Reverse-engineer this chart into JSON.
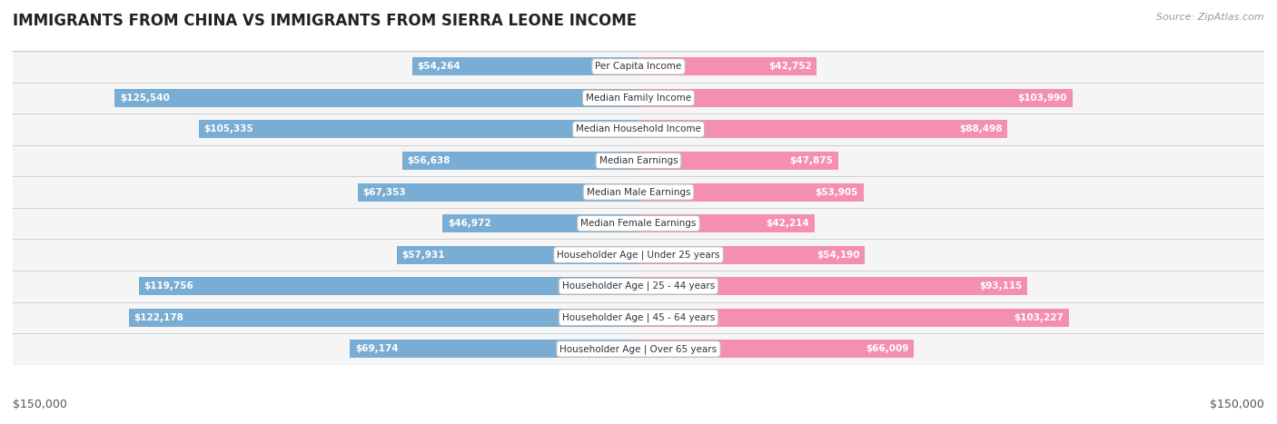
{
  "title": "IMMIGRANTS FROM CHINA VS IMMIGRANTS FROM SIERRA LEONE INCOME",
  "source": "Source: ZipAtlas.com",
  "categories": [
    "Per Capita Income",
    "Median Family Income",
    "Median Household Income",
    "Median Earnings",
    "Median Male Earnings",
    "Median Female Earnings",
    "Householder Age | Under 25 years",
    "Householder Age | 25 - 44 years",
    "Householder Age | 45 - 64 years",
    "Householder Age | Over 65 years"
  ],
  "china_values": [
    54264,
    125540,
    105335,
    56638,
    67353,
    46972,
    57931,
    119756,
    122178,
    69174
  ],
  "sierra_values": [
    42752,
    103990,
    88498,
    47875,
    53905,
    42214,
    54190,
    93115,
    103227,
    66009
  ],
  "china_color": "#7aadd4",
  "sierra_color": "#f48fb1",
  "china_color_dark": "#5b8fbf",
  "sierra_color_dark": "#e84393",
  "china_label": "Immigrants from China",
  "sierra_label": "Immigrants from Sierra Leone",
  "max_value": 150000,
  "xlabel_left": "$150,000",
  "xlabel_right": "$150,000",
  "value_label_inside_color": "#ffffff",
  "value_label_outside_color": "#555555",
  "inside_threshold": 15000,
  "title_fontsize": 12,
  "bar_height": 0.58,
  "row_bg_color": "#f5f5f5",
  "row_line_color": "#d0d0d0",
  "outer_border_color": "#c8c8c8"
}
